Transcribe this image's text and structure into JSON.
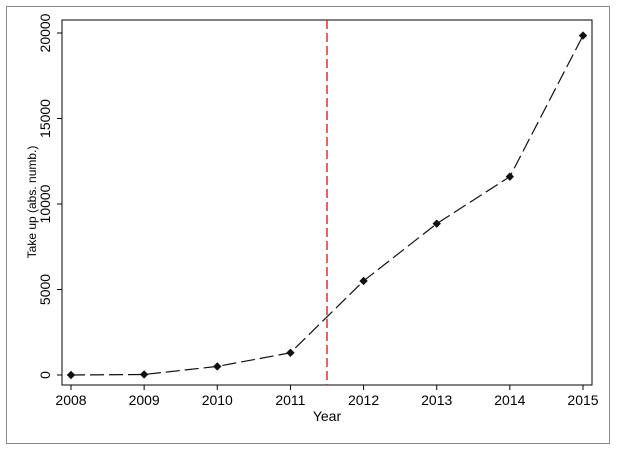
{
  "chart_data": {
    "type": "line",
    "xlabel": "Year",
    "ylabel": "Take up (abs. numb.)",
    "x": [
      2008,
      2009,
      2010,
      2011,
      2012,
      2013,
      2014,
      2015
    ],
    "series": [
      {
        "values": [
          0,
          30,
          500,
          1300,
          5500,
          8850,
          11600,
          19850
        ]
      }
    ],
    "xlim": [
      2008,
      2015
    ],
    "ylim": [
      0,
      20000
    ],
    "xticks": [
      "2008",
      "2009",
      "2010",
      "2011",
      "2012",
      "2013",
      "2014",
      "2015"
    ],
    "yticks": [
      "0",
      "5000",
      "10000",
      "15000",
      "20000"
    ],
    "reference_line": {
      "x": 2011.5,
      "color": "#e03030",
      "style": "dashed"
    },
    "line_color": "#111111",
    "line_style": "long-dash",
    "marker": "diamond",
    "grid": false
  }
}
